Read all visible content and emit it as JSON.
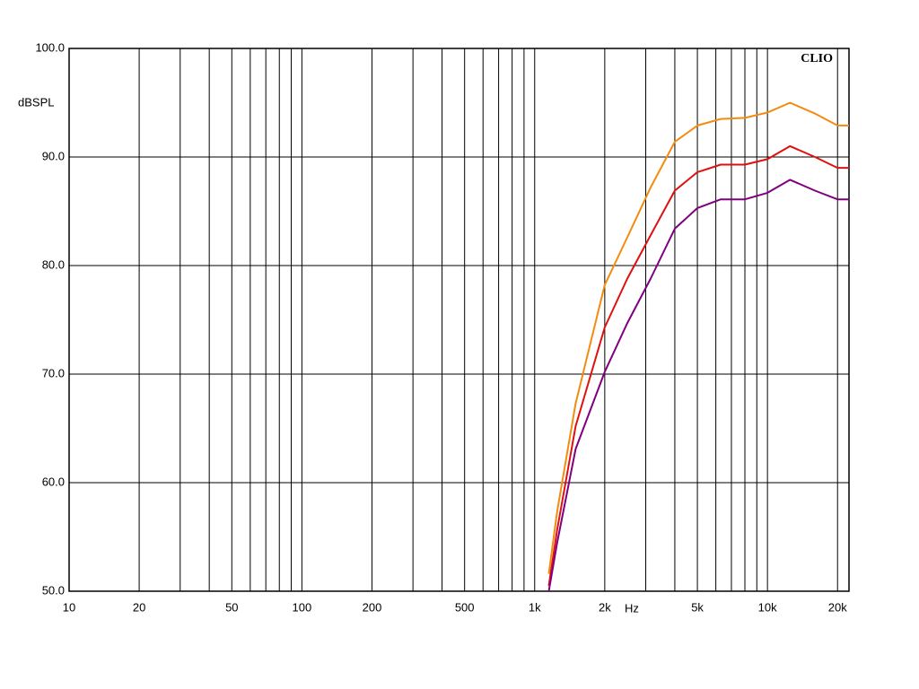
{
  "chart_data": {
    "type": "line",
    "y_label": "dBSPL",
    "x_label": "Hz",
    "brand": "CLIO",
    "x": [
      1150,
      1250,
      1500,
      2000,
      2500,
      3150,
      4000,
      5000,
      6300,
      8000,
      10000,
      12500,
      16000,
      20000,
      22400
    ],
    "series": [
      {
        "name": "orange",
        "color": "#f28c0f",
        "values": [
          51.6,
          57.4,
          67.3,
          78.2,
          82.6,
          87.2,
          91.4,
          92.9,
          93.5,
          93.6,
          94.1,
          95.0,
          94.0,
          92.9,
          92.9
        ]
      },
      {
        "name": "red",
        "color": "#e01010",
        "values": [
          50.5,
          55.7,
          65.2,
          74.3,
          78.8,
          82.8,
          86.9,
          88.6,
          89.3,
          89.3,
          89.8,
          91.0,
          90.0,
          89.0,
          89.0
        ]
      },
      {
        "name": "purple",
        "color": "#800080",
        "values": [
          50.0,
          54.5,
          63.1,
          70.2,
          74.7,
          78.8,
          83.4,
          85.3,
          86.1,
          86.1,
          86.7,
          87.9,
          86.9,
          86.1,
          86.1
        ]
      }
    ],
    "log_x": true,
    "grid": true,
    "xlim": [
      10,
      22400
    ],
    "xticks": [
      10,
      20,
      50,
      100,
      200,
      500,
      {
        "value": 1000,
        "label": "1k"
      },
      {
        "value": 2000,
        "label": "2k"
      },
      {
        "value": 5000,
        "label": "5k"
      },
      {
        "value": 10000,
        "label": "10k"
      },
      {
        "value": 20000,
        "label": "20k"
      }
    ],
    "xminor_ticks": [
      30,
      40,
      60,
      70,
      80,
      90,
      300,
      400,
      600,
      700,
      800,
      900,
      3000,
      4000,
      6000,
      7000,
      8000,
      9000
    ],
    "ylim": [
      50,
      100
    ],
    "yticks": [
      {
        "value": 50,
        "label": "50.0"
      },
      {
        "value": 60,
        "label": "60.0"
      },
      {
        "value": 70,
        "label": "70.0"
      },
      {
        "value": 80,
        "label": "80.0"
      },
      {
        "value": 90,
        "label": "90.0"
      },
      {
        "value": 100,
        "label": "100.0"
      }
    ]
  }
}
